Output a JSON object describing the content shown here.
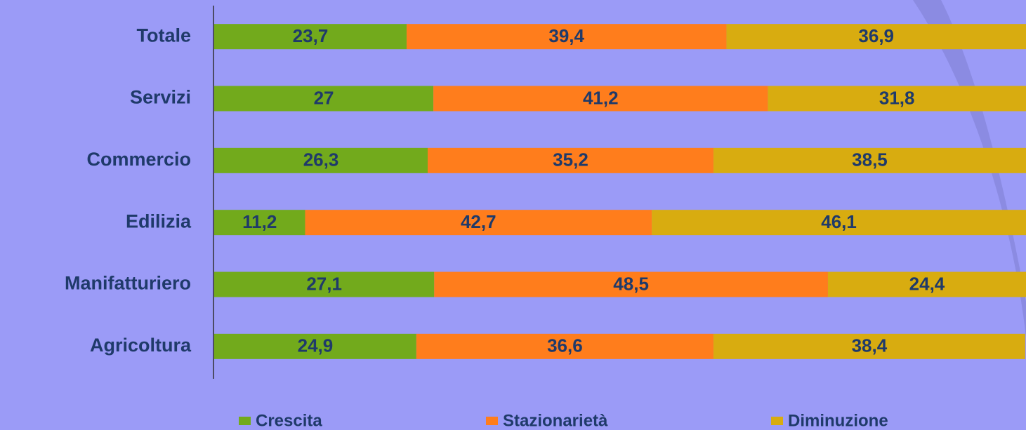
{
  "chart_data": {
    "type": "stacked-bar-horizontal",
    "categories": [
      "Totale",
      "Servizi",
      "Commercio",
      "Edilizia",
      "Manifatturiero",
      "Agricoltura"
    ],
    "series": [
      {
        "name": "Crescita",
        "color": "#72aa1c",
        "values": [
          23.7,
          27,
          26.3,
          11.2,
          27.1,
          24.9
        ],
        "value_labels": [
          "23,7",
          "27",
          "26,3",
          "11,2",
          "27,1",
          "24,9"
        ]
      },
      {
        "name": "Stazionarietà",
        "color": "#ff7d1c",
        "values": [
          39.4,
          41.2,
          35.2,
          42.7,
          48.5,
          36.6
        ],
        "value_labels": [
          "39,4",
          "41,2",
          "35,2",
          "42,7",
          "48,5",
          "36,6"
        ]
      },
      {
        "name": "Diminuzione",
        "color": "#d8ac10",
        "values": [
          36.9,
          31.8,
          38.5,
          46.1,
          24.4,
          38.4
        ],
        "value_labels": [
          "36,9",
          "31,8",
          "38,5",
          "46,1",
          "24,4",
          "38,4"
        ]
      }
    ],
    "xlim": [
      0,
      100
    ]
  }
}
